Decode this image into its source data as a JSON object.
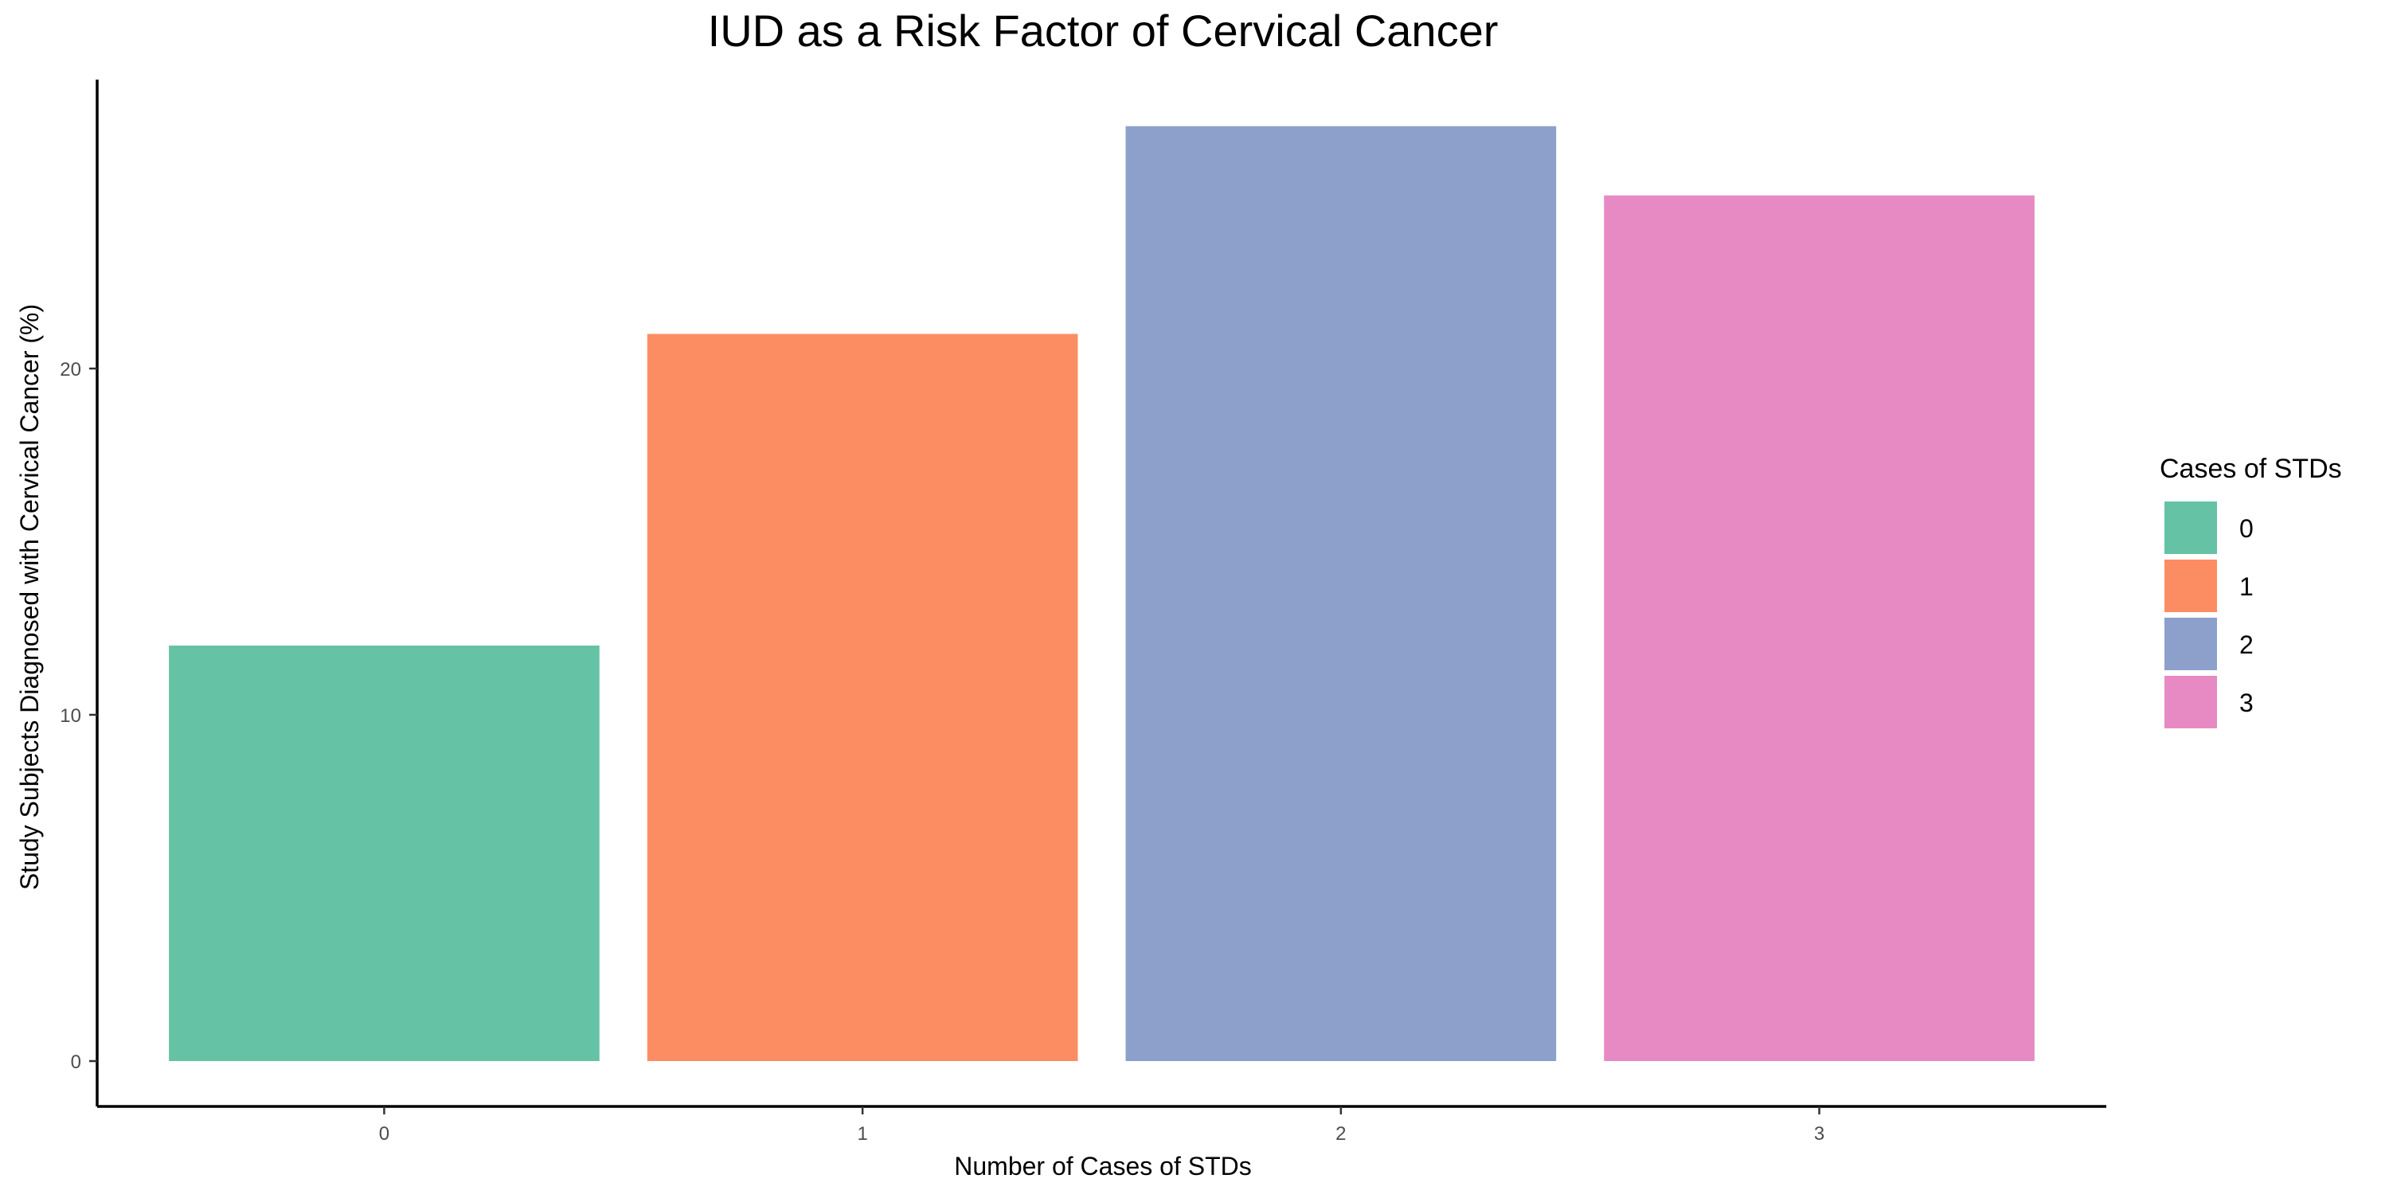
{
  "chart_data": {
    "type": "bar",
    "title": "IUD as a Risk Factor of Cervical Cancer",
    "xlabel": "Number of Cases of STDs",
    "ylabel": "Study Subjects Diagnosed with Cervical Cancer (%)",
    "categories": [
      "0",
      "1",
      "2",
      "3"
    ],
    "values": [
      12,
      21,
      27,
      25
    ],
    "colors": [
      "#66C2A5",
      "#FC8D62",
      "#8DA0CB",
      "#E78AC3"
    ],
    "ylim": [
      0,
      28
    ],
    "yticks": [
      0,
      10,
      20
    ],
    "ytick_labels": [
      "0",
      "10",
      "20"
    ],
    "grid": false,
    "legend": {
      "title": "Cases of STDs",
      "placement": "right",
      "entries": [
        "0",
        "1",
        "2",
        "3"
      ]
    }
  }
}
